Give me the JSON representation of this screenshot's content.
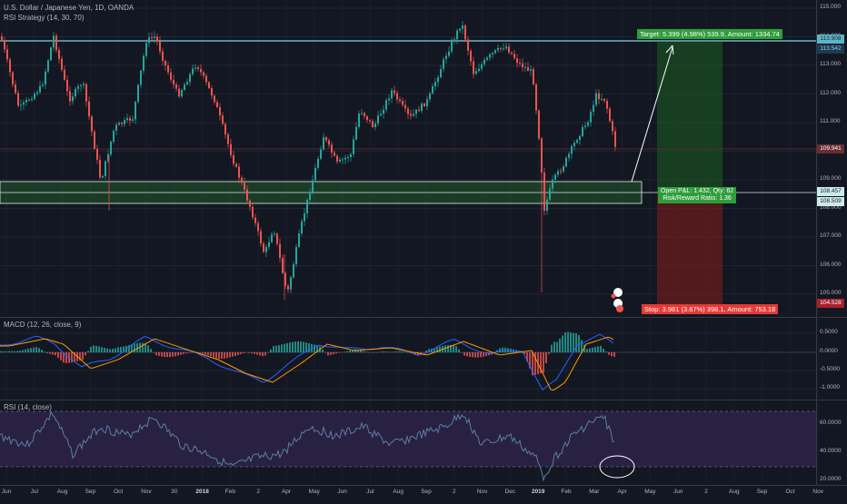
{
  "header": {
    "symbol_title": "U.S. Dollar / Japanese Yen, 1D, OANDA",
    "strategy_label": "RSI Strategy (14, 30, 70)"
  },
  "panes": {
    "macd_label": "MACD (12, 26, close, 9)",
    "rsi_label": "RSI (14, close)"
  },
  "price_axis": {
    "ticks": [
      "115.000",
      "114.000",
      "113.000",
      "112.000",
      "111.000",
      "110.000",
      "109.000",
      "108.000",
      "107.000",
      "106.000",
      "105.000"
    ],
    "tags": [
      {
        "label": "113.908",
        "bg": "#5fb3c6",
        "fg": "#0b2a33"
      },
      {
        "label": "113.542",
        "bg": "#1e3a4f",
        "fg": "#7fd1e6"
      },
      {
        "label": "109.941",
        "bg": "#6b2b33",
        "fg": "#ffffff"
      },
      {
        "label": "108.457",
        "bg": "#cfe9ea",
        "fg": "#10232a"
      },
      {
        "label": "108.509",
        "bg": "#cfe9ea",
        "fg": "#10232a"
      },
      {
        "label": "104.528",
        "bg": "#a81f2a",
        "fg": "#ffffff"
      }
    ]
  },
  "macd_axis": {
    "ticks": [
      "0.5000",
      "0.0000",
      "-0.5000",
      "-1.0000"
    ]
  },
  "rsi_axis": {
    "ticks": [
      "60.0000",
      "40.0000",
      "20.0000"
    ]
  },
  "time_axis": {
    "labels": [
      "Jun",
      "Jul",
      "Aug",
      "Sep",
      "Oct",
      "Nov",
      "30",
      "2018",
      "Feb",
      "2",
      "Apr",
      "May",
      "Jun",
      "Jul",
      "Aug",
      "Sep",
      "2",
      "Nov",
      "Dec",
      "2019",
      "Feb",
      "Mar",
      "Apr",
      "May",
      "Jun",
      "2",
      "Aug",
      "Sep",
      "Oct",
      "Nov"
    ]
  },
  "position": {
    "target_label": "Target: 5.399 (4.98%) 539.9, Amount: 1334.74",
    "open_label_line1": "Open P&L: 1.432, Qty: 62",
    "open_label_line2": "Risk/Reward Ratio: 1.36",
    "stop_label": "Stop: 3.981 (3.67%) 398.1, Amount: 753.18"
  },
  "colors": {
    "background": "#131722",
    "bull": "#26a69a",
    "bear": "#ef5350",
    "profit_zone": "#1b5e20",
    "loss_zone": "#7f1d1d",
    "support_zone": "#2e7d32",
    "resistance_line": "#7fd1e6",
    "macd_line": "#2962ff",
    "signal_line": "#ff9800",
    "rsi_line": "#5b7fa3",
    "rsi_band": "#3d2a5c"
  }
}
